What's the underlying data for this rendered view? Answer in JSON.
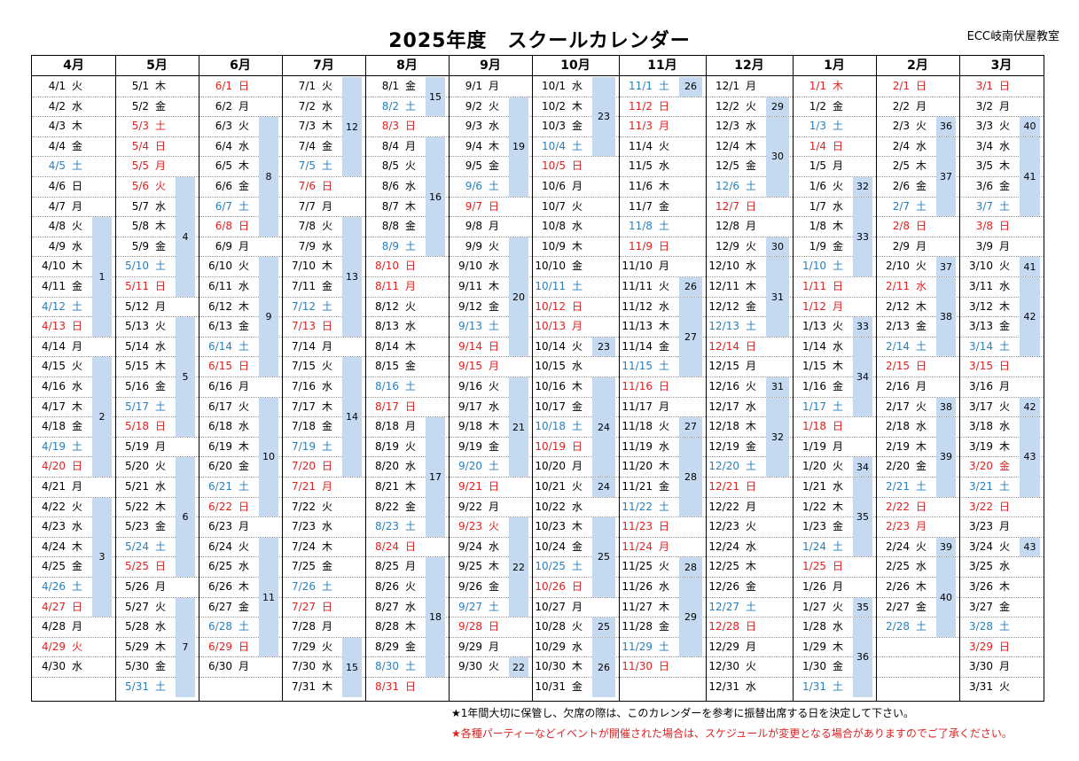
{
  "title": "2025年度　スクールカレンダー",
  "school": "ECC岐南伏屋教室",
  "colors": {
    "saturday": "#2b7fb8",
    "holiday": "#d22222",
    "week_band": "#c5d9f1"
  },
  "notes": [
    "★1年間大切に保管し、欠席の際は、このカレンダーを参考に振替出席する日を決定して下さい。",
    "★各種パーティーなどイベントが開催された場合は、スケジュールが変更となる場合がありますのでご了承ください。"
  ],
  "months": [
    {
      "label": "4月",
      "m": 4,
      "startRow": 0,
      "days": 30,
      "startWeekday": 2,
      "red": [
        13,
        20,
        27,
        29
      ],
      "blue": [
        5,
        12,
        19,
        26
      ],
      "weeks": [
        {
          "label": "",
          "rows": [
            0,
            6
          ]
        },
        {
          "label": "1",
          "rows": [
            7,
            12
          ]
        },
        {
          "label": "2",
          "rows": [
            14,
            19
          ]
        },
        {
          "label": "3",
          "rows": [
            21,
            26
          ]
        }
      ]
    },
    {
      "label": "5月",
      "m": 5,
      "startRow": 0,
      "days": 31,
      "startWeekday": 4,
      "red": [
        3,
        4,
        5,
        6,
        11,
        18,
        25
      ],
      "blue": [
        10,
        17,
        24,
        31
      ],
      "weeks": [
        {
          "label": "4",
          "rows": [
            5,
            10
          ]
        },
        {
          "label": "5",
          "rows": [
            12,
            17
          ]
        },
        {
          "label": "6",
          "rows": [
            19,
            24
          ]
        },
        {
          "label": "7",
          "rows": [
            26,
            30
          ]
        }
      ]
    },
    {
      "label": "6月",
      "m": 6,
      "startRow": 0,
      "days": 30,
      "startWeekday": 0,
      "red": [
        1,
        8,
        15,
        22,
        29
      ],
      "blue": [
        7,
        14,
        21,
        28
      ],
      "weeks": [
        {
          "label": "8",
          "rows": [
            2,
            7
          ]
        },
        {
          "label": "9",
          "rows": [
            9,
            14
          ]
        },
        {
          "label": "10",
          "rows": [
            16,
            21
          ]
        },
        {
          "label": "11",
          "rows": [
            23,
            28
          ]
        }
      ]
    },
    {
      "label": "7月",
      "m": 7,
      "startRow": 0,
      "days": 31,
      "startWeekday": 2,
      "red": [
        6,
        13,
        20,
        21,
        27
      ],
      "blue": [
        5,
        12,
        19,
        26
      ],
      "weeks": [
        {
          "label": "12",
          "rows": [
            0,
            4
          ]
        },
        {
          "label": "13",
          "rows": [
            7,
            12
          ]
        },
        {
          "label": "14",
          "rows": [
            14,
            19
          ]
        },
        {
          "label": "15",
          "rows": [
            28,
            30
          ]
        }
      ]
    },
    {
      "label": "8月",
      "m": 8,
      "startRow": 0,
      "days": 31,
      "startWeekday": 5,
      "red": [
        3,
        10,
        11,
        17,
        24,
        31
      ],
      "blue": [
        2,
        9,
        16,
        23,
        30
      ],
      "weeks": [
        {
          "label": "15",
          "rows": [
            0,
            1
          ]
        },
        {
          "label": "16",
          "rows": [
            3,
            8
          ]
        },
        {
          "label": "17",
          "rows": [
            17,
            22
          ]
        },
        {
          "label": "18",
          "rows": [
            24,
            29
          ]
        }
      ]
    },
    {
      "label": "9月",
      "m": 9,
      "startRow": 0,
      "days": 30,
      "startWeekday": 1,
      "red": [
        7,
        14,
        15,
        21,
        23,
        28
      ],
      "blue": [
        6,
        13,
        20,
        27
      ],
      "weeks": [
        {
          "label": "19",
          "rows": [
            1,
            5
          ]
        },
        {
          "label": "20",
          "rows": [
            8,
            13
          ]
        },
        {
          "label": "21",
          "rows": [
            15,
            19
          ]
        },
        {
          "label": "22",
          "rows": [
            22,
            26
          ]
        },
        {
          "label": "22",
          "rows": [
            29,
            29
          ]
        }
      ]
    },
    {
      "label": "10月",
      "m": 10,
      "startRow": 0,
      "days": 31,
      "startWeekday": 3,
      "red": [
        5,
        12,
        13,
        19,
        26
      ],
      "blue": [
        4,
        11,
        18,
        25
      ],
      "weeks": [
        {
          "label": "23",
          "rows": [
            0,
            3
          ]
        },
        {
          "label": "23",
          "rows": [
            13,
            13
          ]
        },
        {
          "label": "24",
          "rows": [
            15,
            19
          ]
        },
        {
          "label": "24",
          "rows": [
            20,
            20
          ]
        },
        {
          "label": "25",
          "rows": [
            22,
            25
          ]
        },
        {
          "label": "25",
          "rows": [
            27,
            27
          ]
        },
        {
          "label": "26",
          "rows": [
            28,
            30
          ]
        }
      ]
    },
    {
      "label": "11月",
      "m": 11,
      "startRow": 0,
      "days": 30,
      "startWeekday": 6,
      "red": [
        2,
        3,
        9,
        16,
        23,
        24,
        30
      ],
      "blue": [
        1,
        8,
        15,
        22,
        29
      ],
      "weeks": [
        {
          "label": "26",
          "rows": [
            0,
            0
          ]
        },
        {
          "label": "26",
          "rows": [
            10,
            10
          ]
        },
        {
          "label": "27",
          "rows": [
            11,
            14
          ]
        },
        {
          "label": "27",
          "rows": [
            17,
            17
          ]
        },
        {
          "label": "28",
          "rows": [
            18,
            21
          ]
        },
        {
          "label": "28",
          "rows": [
            24,
            24
          ]
        },
        {
          "label": "29",
          "rows": [
            25,
            28
          ]
        }
      ]
    },
    {
      "label": "12月",
      "m": 12,
      "startRow": 0,
      "days": 31,
      "startWeekday": 1,
      "red": [
        7,
        14,
        21,
        28
      ],
      "blue": [
        6,
        13,
        20,
        27
      ],
      "weeks": [
        {
          "label": "29",
          "rows": [
            1,
            1
          ]
        },
        {
          "label": "30",
          "rows": [
            2,
            5
          ]
        },
        {
          "label": "30",
          "rows": [
            8,
            8
          ]
        },
        {
          "label": "31",
          "rows": [
            9,
            12
          ]
        },
        {
          "label": "31",
          "rows": [
            15,
            15
          ]
        },
        {
          "label": "32",
          "rows": [
            16,
            19
          ]
        }
      ]
    },
    {
      "label": "1月",
      "m": 1,
      "startRow": 0,
      "days": 31,
      "startWeekday": 4,
      "red": [
        1,
        4,
        11,
        12,
        18,
        25
      ],
      "blue": [
        3,
        10,
        17,
        24,
        31
      ],
      "weeks": [
        {
          "label": "32",
          "rows": [
            5,
            5
          ]
        },
        {
          "label": "33",
          "rows": [
            6,
            9
          ]
        },
        {
          "label": "33",
          "rows": [
            12,
            12
          ]
        },
        {
          "label": "34",
          "rows": [
            13,
            16
          ]
        },
        {
          "label": "34",
          "rows": [
            19,
            19
          ]
        },
        {
          "label": "35",
          "rows": [
            20,
            23
          ]
        },
        {
          "label": "35",
          "rows": [
            26,
            26
          ]
        },
        {
          "label": "36",
          "rows": [
            27,
            30
          ]
        }
      ]
    },
    {
      "label": "2月",
      "m": 2,
      "startRow": 0,
      "days": 28,
      "startWeekday": 0,
      "red": [
        1,
        8,
        11,
        15,
        22,
        23
      ],
      "blue": [
        7,
        14,
        21,
        28
      ],
      "weeks": [
        {
          "label": "36",
          "rows": [
            2,
            2
          ]
        },
        {
          "label": "37",
          "rows": [
            3,
            6
          ]
        },
        {
          "label": "37",
          "rows": [
            9,
            9
          ]
        },
        {
          "label": "38",
          "rows": [
            10,
            13
          ]
        },
        {
          "label": "38",
          "rows": [
            16,
            16
          ]
        },
        {
          "label": "39",
          "rows": [
            17,
            20
          ]
        },
        {
          "label": "39",
          "rows": [
            23,
            23
          ]
        },
        {
          "label": "40",
          "rows": [
            24,
            27
          ]
        }
      ]
    },
    {
      "label": "3月",
      "m": 3,
      "startRow": 0,
      "days": 31,
      "startWeekday": 0,
      "red": [
        1,
        8,
        15,
        20,
        22,
        29
      ],
      "blue": [
        7,
        14,
        21,
        28
      ],
      "weeks": [
        {
          "label": "40",
          "rows": [
            2,
            2
          ]
        },
        {
          "label": "41",
          "rows": [
            3,
            6
          ]
        },
        {
          "label": "41",
          "rows": [
            9,
            9
          ]
        },
        {
          "label": "42",
          "rows": [
            10,
            13
          ]
        },
        {
          "label": "42",
          "rows": [
            16,
            16
          ]
        },
        {
          "label": "43",
          "rows": [
            17,
            20
          ]
        },
        {
          "label": "43",
          "rows": [
            23,
            23
          ]
        }
      ]
    }
  ],
  "weekday_names": [
    "日",
    "月",
    "火",
    "水",
    "木",
    "金",
    "土"
  ]
}
